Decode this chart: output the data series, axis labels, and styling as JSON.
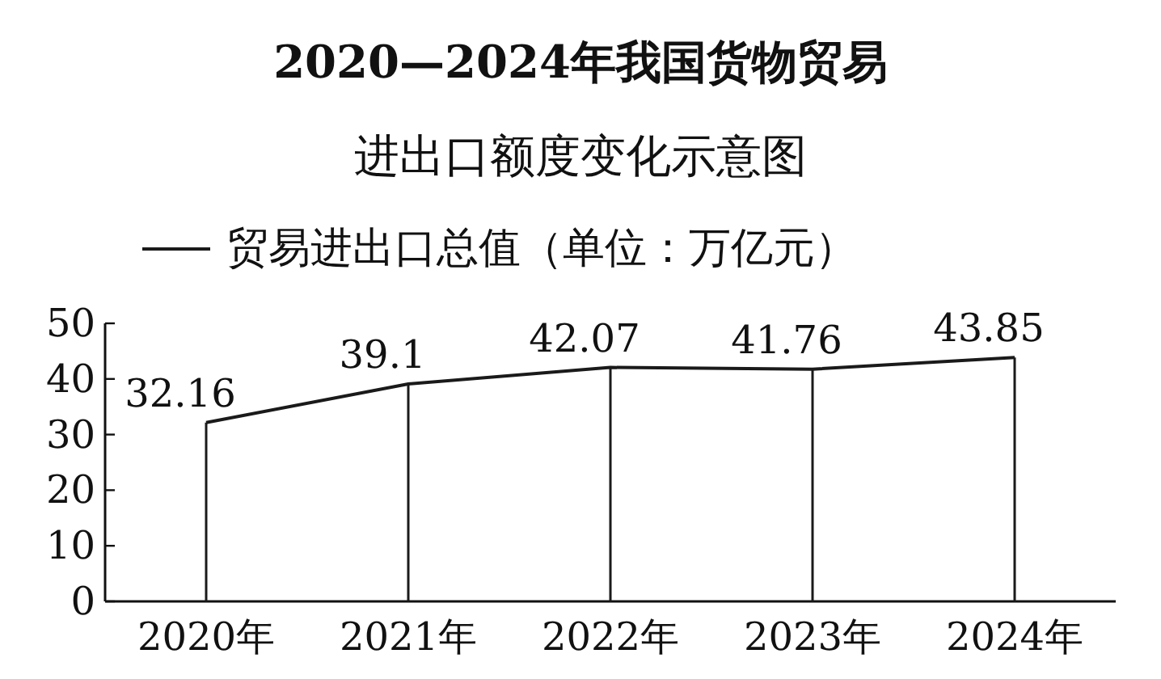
{
  "chart_data": {
    "type": "line",
    "title": "2020—2024年我国货物贸易",
    "subtitle": "进出口额度变化示意图",
    "categories": [
      "2020年",
      "2021年",
      "2022年",
      "2023年",
      "2024年"
    ],
    "series": [
      {
        "name": "贸易进出口总值（单位：万亿元）",
        "color": "#1a1a1a",
        "values": [
          32.16,
          39.1,
          42.07,
          41.76,
          43.85
        ]
      }
    ],
    "ylim": [
      0,
      50
    ],
    "yticks": [
      0,
      10,
      20,
      30,
      40,
      50
    ],
    "data_labels": true,
    "legend": "top",
    "grid": "x",
    "marker": "none",
    "line_style": "solid"
  }
}
